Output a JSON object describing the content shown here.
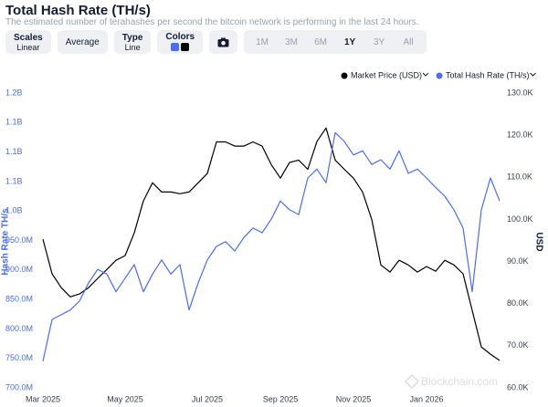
{
  "header": {
    "title": "Total Hash Rate (TH/s)",
    "subtitle": "The estimated number of terahashes per second the bitcoin network is performing in the last 24 hours."
  },
  "controls": [
    {
      "label": "Scales",
      "value": "Linear"
    },
    {
      "label": "Average"
    },
    {
      "label": "Type",
      "value": "Line"
    },
    {
      "label": "Colors"
    }
  ],
  "ranges": [
    "1M",
    "3M",
    "6M",
    "1Y",
    "3Y",
    "All"
  ],
  "active_range": "1Y",
  "watermark": "Blockchain.com",
  "chart_data": {
    "type": "line",
    "ylabel": "Hash Rate TH/s",
    "y2label": "USD",
    "categories": [
      "Mar 2025",
      null,
      null,
      null,
      null,
      null,
      null,
      null,
      null,
      "May 2025",
      null,
      null,
      null,
      null,
      null,
      null,
      null,
      null,
      "Jul 2025",
      null,
      null,
      null,
      null,
      null,
      null,
      null,
      "Sep 2025",
      null,
      null,
      null,
      null,
      null,
      null,
      null,
      "Nov 2025",
      null,
      null,
      null,
      null,
      null,
      null,
      null,
      "Jan 2026",
      null,
      null,
      null,
      null,
      null,
      null,
      null,
      null
    ],
    "ylim": [
      700000000,
      1200000000
    ],
    "yticks": [
      {
        "value": 700000000,
        "label": "700.0M"
      },
      {
        "value": 750000000,
        "label": "750.0M"
      },
      {
        "value": 800000000,
        "label": "800.0M"
      },
      {
        "value": 850000000,
        "label": "850.0M"
      },
      {
        "value": 900000000,
        "label": "900.0M"
      },
      {
        "value": 950000000,
        "label": "950.0M"
      },
      {
        "value": 1000000000,
        "label": "1.0B"
      },
      {
        "value": 1050000000,
        "label": "1.1B"
      },
      {
        "value": 1100000000,
        "label": "1.1B"
      },
      {
        "value": 1150000000,
        "label": "1.1B"
      },
      {
        "value": 1200000000,
        "label": "1.2B"
      }
    ],
    "y2lim": [
      60000,
      130000
    ],
    "y2ticks": [
      {
        "value": 60000,
        "label": "60.0K"
      },
      {
        "value": 70000,
        "label": "70.0K"
      },
      {
        "value": 80000,
        "label": "80.0K"
      },
      {
        "value": 90000,
        "label": "90.0K"
      },
      {
        "value": 100000,
        "label": "100.0K"
      },
      {
        "value": 110000,
        "label": "110.0K"
      },
      {
        "value": 120000,
        "label": "120.0K"
      },
      {
        "value": 130000,
        "label": "130.0K"
      }
    ],
    "series": [
      {
        "name": "Market Price (USD)",
        "color": "#000000",
        "axis": "y2",
        "values": [
          95300,
          87100,
          83800,
          81600,
          82300,
          83800,
          86000,
          88100,
          90300,
          91400,
          96800,
          104400,
          108700,
          106500,
          106500,
          106100,
          106500,
          108700,
          110900,
          118400,
          118400,
          117400,
          117400,
          118400,
          117400,
          113000,
          109800,
          113500,
          114100,
          111900,
          118500,
          121700,
          114100,
          111900,
          109800,
          106500,
          100000,
          89200,
          87500,
          90300,
          89200,
          87500,
          88800,
          87700,
          90300,
          89200,
          87100,
          78400,
          69700,
          68000,
          66500
        ]
      },
      {
        "name": "Total Hash Rate (TH/s)",
        "color": "#4a6cf7",
        "axis": "y",
        "values": [
          745000000,
          816000000,
          824000000,
          832000000,
          847000000,
          878000000,
          901000000,
          893000000,
          863000000,
          886000000,
          909000000,
          863000000,
          893000000,
          917000000,
          893000000,
          909000000,
          832000000,
          878000000,
          917000000,
          940000000,
          948000000,
          932000000,
          955000000,
          971000000,
          963000000,
          986000000,
          1017000000,
          1002000000,
          994000000,
          1056000000,
          1071000000,
          1048000000,
          1133000000,
          1118000000,
          1095000000,
          1102000000,
          1079000000,
          1087000000,
          1071000000,
          1102000000,
          1064000000,
          1071000000,
          1056000000,
          1040000000,
          1025000000,
          1002000000,
          971000000,
          863000000,
          1002000000,
          1056000000,
          1017000000
        ]
      }
    ]
  }
}
